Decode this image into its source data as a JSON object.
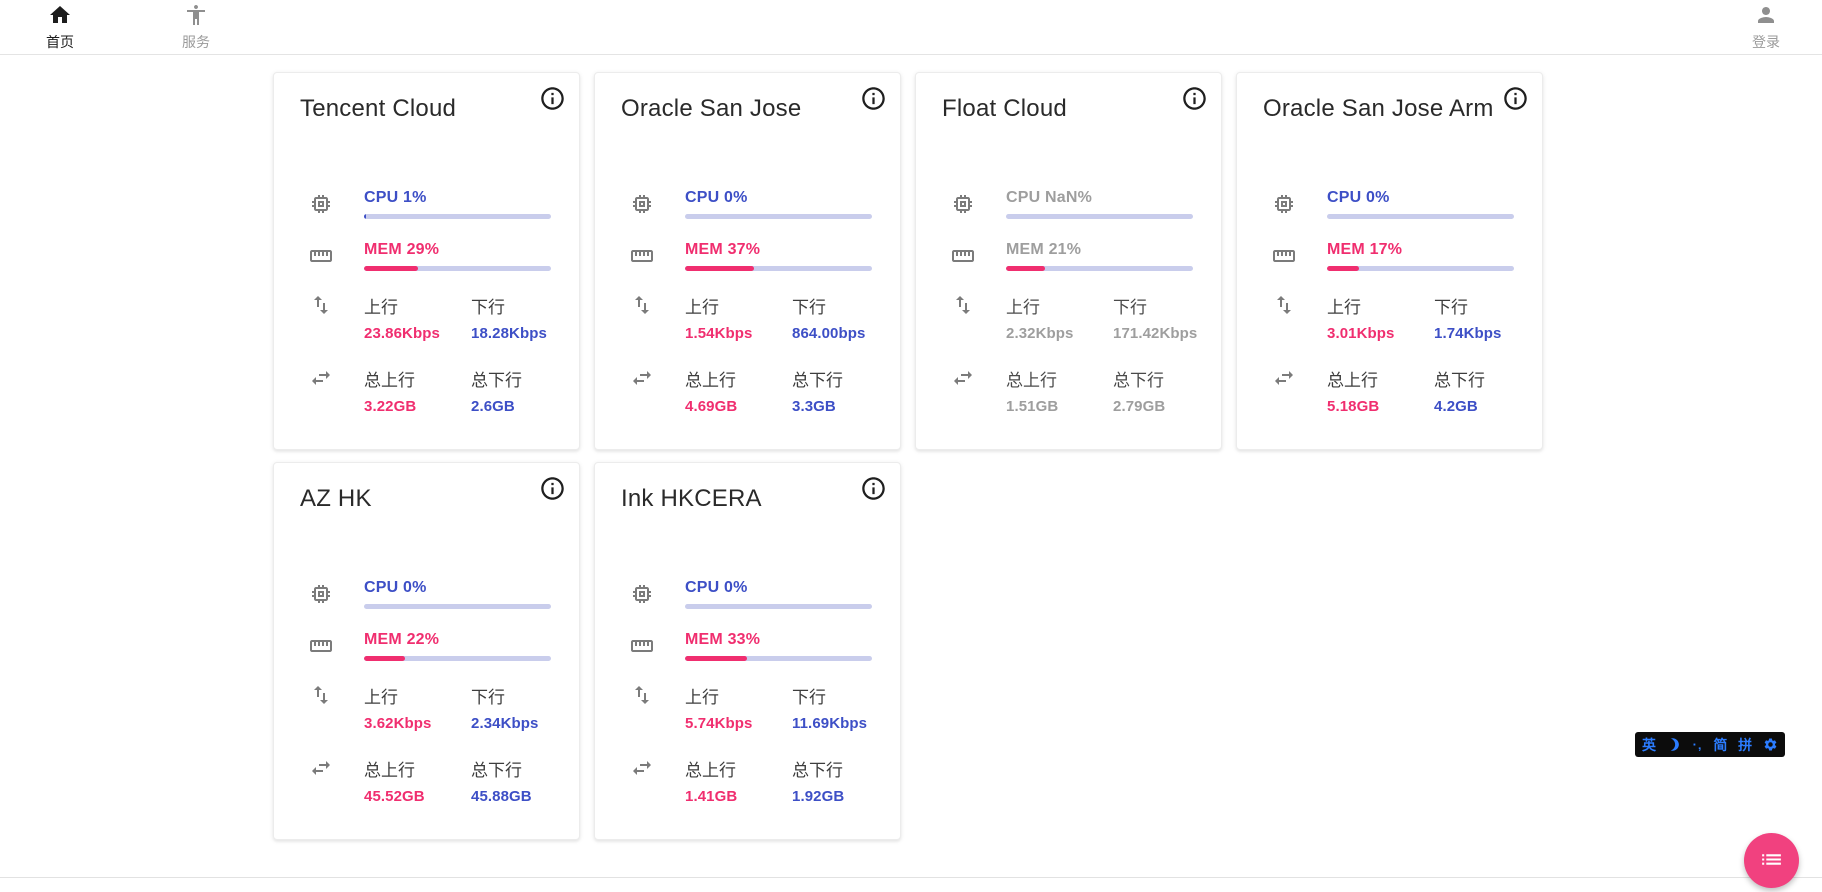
{
  "nav": {
    "home": {
      "label": "首页"
    },
    "services": {
      "label": "服务"
    },
    "login": {
      "label": "登录"
    }
  },
  "labels": {
    "up": "上行",
    "down": "下行",
    "total_up": "总上行",
    "total_down": "总下行"
  },
  "servers": [
    {
      "name": "Tencent Cloud",
      "offline": false,
      "cpu": {
        "text": "CPU 1%",
        "percent": 1
      },
      "mem": {
        "text": "MEM 29%",
        "percent": 29
      },
      "net": {
        "up": "23.86Kbps",
        "down": "18.28Kbps"
      },
      "traffic": {
        "up": "3.22GB",
        "down": "2.6GB"
      }
    },
    {
      "name": "Oracle San Jose",
      "offline": false,
      "cpu": {
        "text": "CPU 0%",
        "percent": 0
      },
      "mem": {
        "text": "MEM 37%",
        "percent": 37
      },
      "net": {
        "up": "1.54Kbps",
        "down": "864.00bps"
      },
      "traffic": {
        "up": "4.69GB",
        "down": "3.3GB"
      }
    },
    {
      "name": "Float Cloud",
      "offline": true,
      "cpu": {
        "text": "CPU NaN%",
        "percent": 0
      },
      "mem": {
        "text": "MEM 21%",
        "percent": 21
      },
      "net": {
        "up": "2.32Kbps",
        "down": "171.42Kbps"
      },
      "traffic": {
        "up": "1.51GB",
        "down": "2.79GB"
      }
    },
    {
      "name": "Oracle San Jose Arm",
      "offline": false,
      "cpu": {
        "text": "CPU 0%",
        "percent": 0
      },
      "mem": {
        "text": "MEM 17%",
        "percent": 17
      },
      "net": {
        "up": "3.01Kbps",
        "down": "1.74Kbps"
      },
      "traffic": {
        "up": "5.18GB",
        "down": "4.2GB"
      }
    },
    {
      "name": "AZ HK",
      "offline": false,
      "cpu": {
        "text": "CPU 0%",
        "percent": 0
      },
      "mem": {
        "text": "MEM 22%",
        "percent": 22
      },
      "net": {
        "up": "3.62Kbps",
        "down": "2.34Kbps"
      },
      "traffic": {
        "up": "45.52GB",
        "down": "45.88GB"
      }
    },
    {
      "name": "Ink HKCERA",
      "offline": false,
      "cpu": {
        "text": "CPU 0%",
        "percent": 0
      },
      "mem": {
        "text": "MEM 33%",
        "percent": 33
      },
      "net": {
        "up": "5.74Kbps",
        "down": "11.69Kbps"
      },
      "traffic": {
        "up": "1.41GB",
        "down": "1.92GB"
      }
    }
  ],
  "ime_toolbar": {
    "english_label": "英",
    "punctuation": "·‚",
    "simplified_label": "简",
    "pinyin_label": "拼"
  },
  "colors": {
    "accent_blue": "#3d4fc6",
    "accent_pink": "#f02e6f",
    "bar_track": "#c9cdec",
    "fab_pink": "#f1417f",
    "offline_gray": "#9e9e9e",
    "ime_blue": "#2b7cff"
  }
}
